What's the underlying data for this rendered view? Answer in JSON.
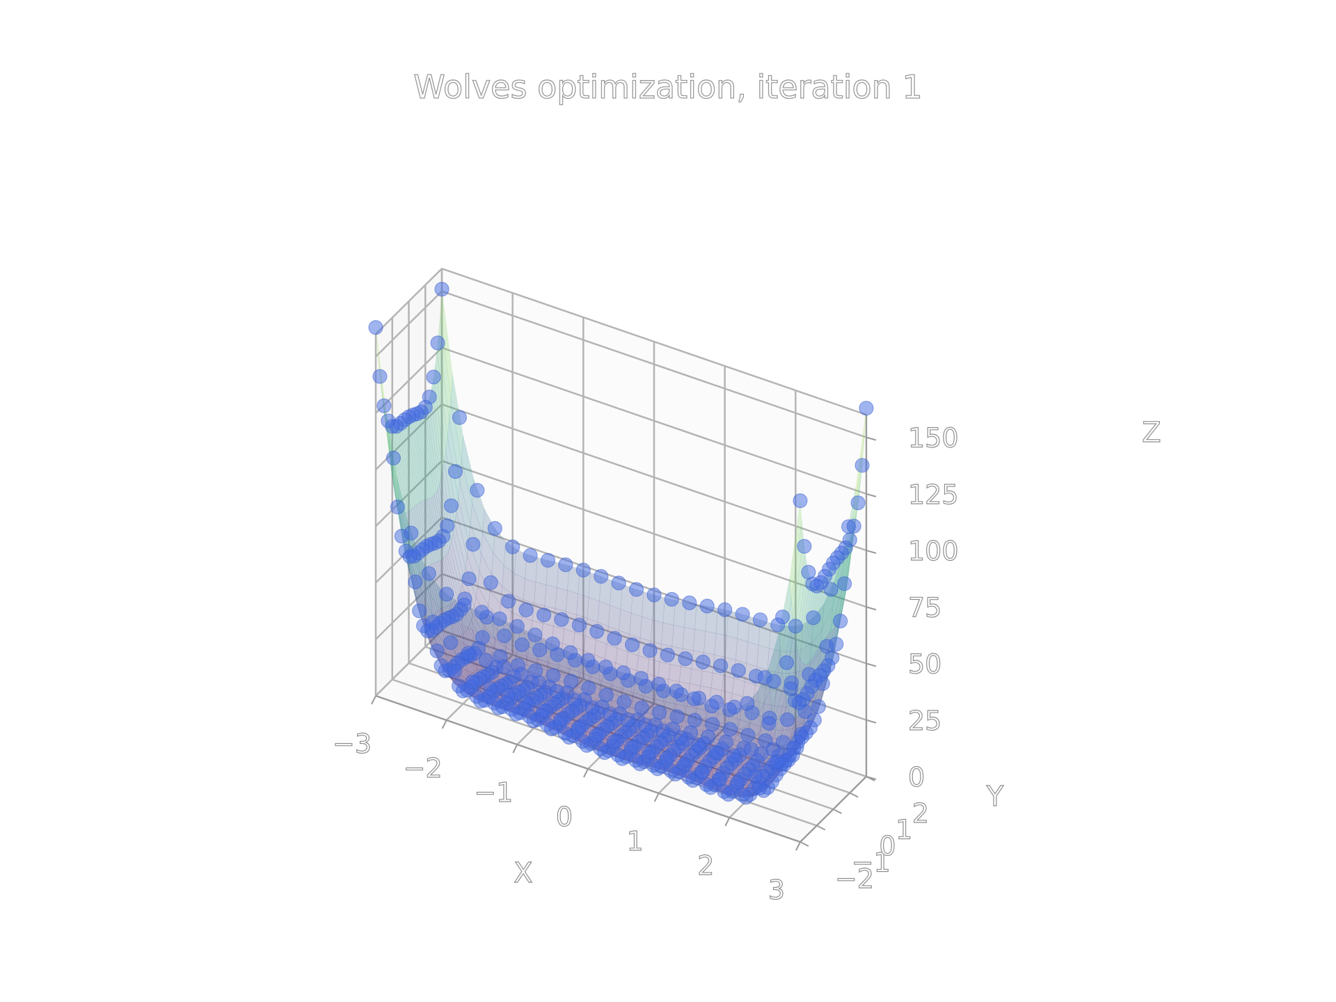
{
  "chart_data": {
    "type": "surface3d",
    "title": "Wolves optimization, iteration 1",
    "xlabel": "X",
    "ylabel": "Y",
    "zlabel": "Z",
    "x_ticks": [
      "−3",
      "−2",
      "−1",
      "0",
      "1",
      "2",
      "3"
    ],
    "y_ticks": [
      "−2",
      "−1",
      "0",
      "1",
      "2"
    ],
    "z_ticks": [
      "0",
      "25",
      "50",
      "75",
      "100",
      "125",
      "150"
    ],
    "xlim": [
      -3,
      3
    ],
    "ylim": [
      -2,
      2
    ],
    "zlim": [
      0,
      160
    ],
    "surface": {
      "function": "(4 - 2.1x^2 + x^4/3)x^2 + xy + (-4 + 4y^2)y^2",
      "colormap": "viridis",
      "alpha": 0.25,
      "colors": [
        "#440154",
        "#3b528b",
        "#21918c",
        "#5ec962",
        "#fde725"
      ]
    },
    "points": {
      "name": "wolves",
      "color": "#4169e1",
      "alpha": 0.5,
      "grid_x": [
        -3,
        -2.75,
        -2.5,
        -2.25,
        -2,
        -1.75,
        -1.5,
        -1.25,
        -1,
        -0.75,
        -0.5,
        -0.25,
        0,
        0.25,
        0.5,
        0.75,
        1,
        1.25,
        1.5,
        1.75,
        2,
        2.25,
        2.5,
        2.75,
        3
      ],
      "grid_y": [
        -2,
        -1.75,
        -1.5,
        -1.25,
        -1,
        -0.75,
        -0.5,
        -0.25,
        0,
        0.25,
        0.5,
        0.75,
        1,
        1.25,
        1.5,
        1.75,
        2
      ]
    },
    "grid": true
  }
}
